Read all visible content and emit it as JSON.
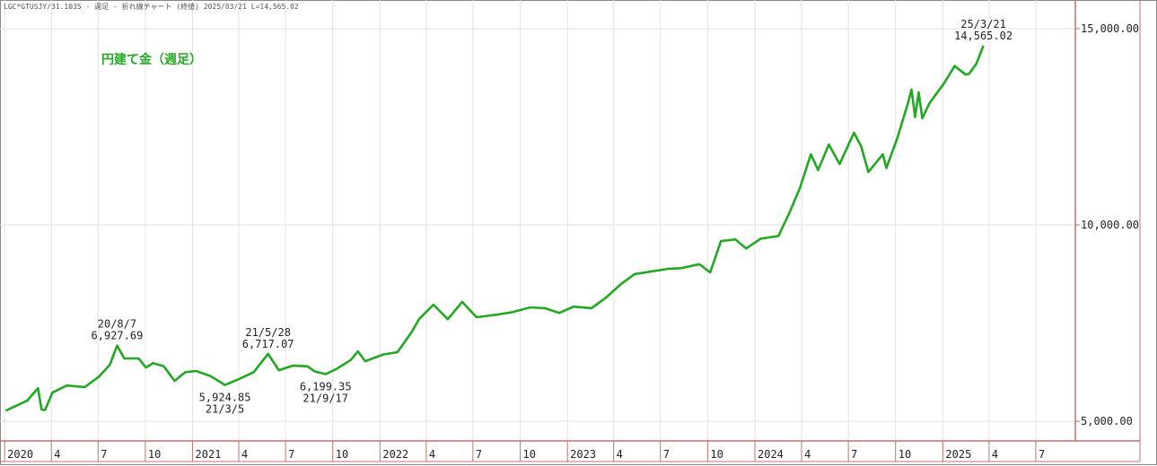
{
  "chart_data": {
    "type": "line",
    "header": "LGC*GTUSJY/31.1035 - 週足 - 折れ線チャート (終値)  2025/03/21 L=14,565.02",
    "title": "円建て金（週足）",
    "color": "#22a822",
    "grid": true,
    "xlim": [
      "2019-12-23",
      "2025-09-16"
    ],
    "ylim": [
      4500,
      15730
    ],
    "yticks": [
      {
        "value": 5000,
        "label": "5,000.00"
      },
      {
        "value": 10000,
        "label": "10,000.00"
      },
      {
        "value": 15000,
        "label": "15,000.00"
      }
    ],
    "xticks": [
      {
        "value": "2020-01-01",
        "label": "2020"
      },
      {
        "value": "2020-04-01",
        "label": "4"
      },
      {
        "value": "2020-07-01",
        "label": "7"
      },
      {
        "value": "2020-10-01",
        "label": "10"
      },
      {
        "value": "2021-01-01",
        "label": "2021"
      },
      {
        "value": "2021-04-01",
        "label": "4"
      },
      {
        "value": "2021-07-01",
        "label": "7"
      },
      {
        "value": "2021-10-01",
        "label": "10"
      },
      {
        "value": "2022-01-01",
        "label": "2022"
      },
      {
        "value": "2022-04-01",
        "label": "4"
      },
      {
        "value": "2022-07-01",
        "label": "7"
      },
      {
        "value": "2022-10-01",
        "label": "10"
      },
      {
        "value": "2023-01-01",
        "label": "2023"
      },
      {
        "value": "2023-04-01",
        "label": "4"
      },
      {
        "value": "2023-07-01",
        "label": "7"
      },
      {
        "value": "2023-10-01",
        "label": "10"
      },
      {
        "value": "2024-01-01",
        "label": "2024"
      },
      {
        "value": "2024-04-01",
        "label": "4"
      },
      {
        "value": "2024-07-01",
        "label": "7"
      },
      {
        "value": "2024-10-01",
        "label": "10"
      },
      {
        "value": "2025-01-01",
        "label": "2025"
      },
      {
        "value": "2025-04-01",
        "label": "4"
      },
      {
        "value": "2025-07-01",
        "label": "7"
      }
    ],
    "x": [
      "2020-01-03",
      "2020-02-14",
      "2020-03-06",
      "2020-03-13",
      "2020-03-20",
      "2020-04-03",
      "2020-05-01",
      "2020-06-05",
      "2020-07-03",
      "2020-07-24",
      "2020-08-07",
      "2020-08-21",
      "2020-09-18",
      "2020-10-02",
      "2020-10-16",
      "2020-11-06",
      "2020-11-27",
      "2020-12-18",
      "2021-01-08",
      "2021-02-05",
      "2021-03-05",
      "2021-04-02",
      "2021-04-30",
      "2021-05-28",
      "2021-06-18",
      "2021-07-16",
      "2021-08-13",
      "2021-08-27",
      "2021-09-17",
      "2021-10-08",
      "2021-11-05",
      "2021-11-19",
      "2021-12-03",
      "2022-01-07",
      "2022-02-04",
      "2022-03-04",
      "2022-03-18",
      "2022-04-15",
      "2022-05-13",
      "2022-06-10",
      "2022-07-08",
      "2022-08-19",
      "2022-09-16",
      "2022-10-21",
      "2022-11-18",
      "2022-12-16",
      "2023-01-13",
      "2023-02-17",
      "2023-03-17",
      "2023-04-14",
      "2023-05-12",
      "2023-06-16",
      "2023-07-14",
      "2023-08-11",
      "2023-09-15",
      "2023-10-06",
      "2023-10-27",
      "2023-11-24",
      "2023-12-15",
      "2024-01-12",
      "2024-02-16",
      "2024-03-08",
      "2024-03-29",
      "2024-04-19",
      "2024-05-03",
      "2024-05-24",
      "2024-06-14",
      "2024-07-12",
      "2024-07-26",
      "2024-08-09",
      "2024-09-06",
      "2024-09-13",
      "2024-10-04",
      "2024-10-25",
      "2024-11-01",
      "2024-11-08",
      "2024-11-15",
      "2024-11-22",
      "2024-12-06",
      "2025-01-03",
      "2025-01-24",
      "2025-02-14",
      "2025-02-21",
      "2025-03-07",
      "2025-03-21"
    ],
    "values": [
      5270,
      5525,
      5845,
      5300,
      5290,
      5730,
      5910,
      5870,
      6140,
      6440,
      6927.69,
      6600,
      6600,
      6370,
      6480,
      6400,
      6030,
      6250,
      6280,
      6150,
      5924.85,
      6080,
      6250,
      6717.07,
      6300,
      6420,
      6400,
      6270,
      6199.35,
      6330,
      6560,
      6780,
      6530,
      6700,
      6760,
      7280,
      7600,
      7970,
      7600,
      8040,
      7650,
      7720,
      7780,
      7900,
      7880,
      7760,
      7920,
      7880,
      8150,
      8480,
      8750,
      8820,
      8880,
      8900,
      9000,
      8790,
      9590,
      9630,
      9400,
      9650,
      9720,
      10300,
      10950,
      11800,
      11400,
      12050,
      11550,
      12350,
      12000,
      11350,
      11800,
      11450,
      12200,
      13100,
      13450,
      12750,
      13380,
      12720,
      13100,
      13600,
      14050,
      13830,
      13850,
      14100,
      14565.02
    ],
    "value_labels": [
      null,
      null,
      null,
      null,
      null,
      null,
      null,
      null,
      null,
      null,
      "6,927.69",
      null,
      null,
      null,
      null,
      null,
      null,
      null,
      null,
      null,
      "5,924.85",
      null,
      null,
      "6,717.07",
      null,
      null,
      null,
      null,
      "6,199.35",
      null,
      null,
      null,
      null,
      null,
      null,
      null,
      null,
      null,
      null,
      null,
      null,
      null,
      null,
      null,
      null,
      null,
      null,
      null,
      null,
      null,
      null,
      null,
      null,
      null,
      null,
      null,
      null,
      null,
      null,
      null,
      null,
      null,
      null,
      null,
      null,
      null,
      null,
      null,
      null,
      null,
      null,
      null,
      null,
      null,
      null,
      null,
      null,
      null,
      null,
      null,
      null,
      null,
      null,
      null,
      "14,565.02"
    ],
    "date_labels": [
      null,
      null,
      null,
      null,
      null,
      null,
      null,
      null,
      null,
      null,
      "20/8/7",
      null,
      null,
      null,
      null,
      null,
      null,
      null,
      null,
      null,
      "21/3/5",
      null,
      null,
      "21/5/28",
      null,
      null,
      null,
      null,
      "21/9/17",
      null,
      null,
      null,
      null,
      null,
      null,
      null,
      null,
      null,
      null,
      null,
      null,
      null,
      null,
      null,
      null,
      null,
      null,
      null,
      null,
      null,
      null,
      null,
      null,
      null,
      null,
      null,
      null,
      null,
      null,
      null,
      null,
      null,
      null,
      null,
      null,
      null,
      null,
      null,
      null,
      null,
      null,
      null,
      null,
      null,
      null,
      null,
      null,
      null,
      null,
      null,
      null,
      null,
      null,
      null,
      "25/3/21"
    ]
  }
}
